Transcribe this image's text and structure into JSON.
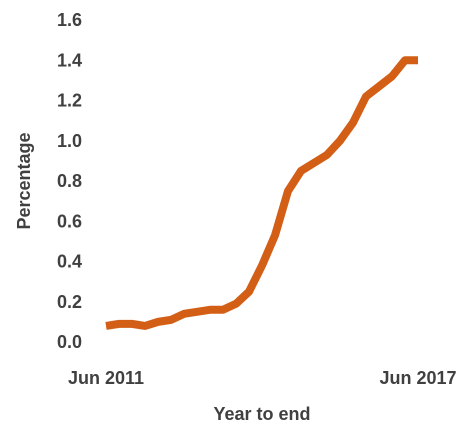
{
  "chart_data": {
    "type": "line",
    "title": "",
    "xlabel": "Year to end",
    "ylabel": "Percentage",
    "ylim": [
      0,
      1.6
    ],
    "y_ticks": [
      "0.0",
      "0.2",
      "0.4",
      "0.6",
      "0.8",
      "1.0",
      "1.2",
      "1.4",
      "1.6"
    ],
    "x_tick_labels": [
      "Jun 2011",
      "Jun 2017"
    ],
    "grid": false,
    "legend": "none",
    "series": [
      {
        "color": "#D35F17",
        "x": [
          "Jun 2011",
          "Sep 2011",
          "Dec 2011",
          "Mar 2012",
          "Jun 2012",
          "Sep 2012",
          "Dec 2012",
          "Mar 2013",
          "Jun 2013",
          "Sep 2013",
          "Dec 2013",
          "Mar 2014",
          "Jun 2014",
          "Sep 2014",
          "Dec 2014",
          "Mar 2015",
          "Jun 2015",
          "Sep 2015",
          "Dec 2015",
          "Mar 2016",
          "Jun 2016",
          "Sep 2016",
          "Dec 2016",
          "Mar 2017",
          "Jun 2017"
        ],
        "values": [
          0.08,
          0.09,
          0.09,
          0.08,
          0.1,
          0.11,
          0.14,
          0.15,
          0.16,
          0.16,
          0.19,
          0.25,
          0.38,
          0.53,
          0.75,
          0.85,
          0.89,
          0.93,
          1.0,
          1.09,
          1.22,
          1.27,
          1.32,
          1.4,
          1.4
        ]
      }
    ]
  }
}
